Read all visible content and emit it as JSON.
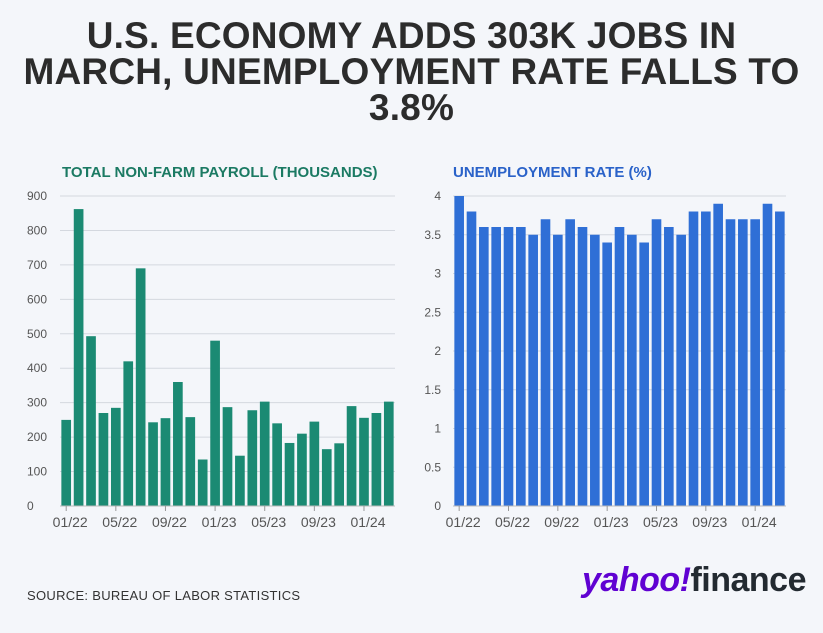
{
  "headline": {
    "line1": "U.S. ECONOMY ADDS 303K JOBS IN",
    "line2": "MARCH, UNEMPLOYMENT RATE FALLS TO",
    "line3": "3.8%"
  },
  "source": "SOURCE: BUREAU OF LABOR STATISTICS",
  "logo": {
    "yahoo": "yahoo!",
    "finance": "finance"
  },
  "colors": {
    "payroll": "#1b8a73",
    "unemployment": "#2f6fd6",
    "payroll_title": "#1b7a63",
    "unemployment_title": "#2a62c9"
  },
  "chart_data": [
    {
      "type": "bar",
      "title": "TOTAL NON-FARM PAYROLL (THOUSANDS)",
      "xlabel": "",
      "ylabel": "",
      "ylim": [
        0,
        900
      ],
      "yticks": [
        "0",
        "100",
        "200",
        "300",
        "400",
        "500",
        "600",
        "700",
        "800",
        "900"
      ],
      "xticks": [
        "01/22",
        "05/22",
        "09/22",
        "01/23",
        "05/23",
        "09/23",
        "01/24"
      ],
      "x": [
        "01/22",
        "02/22",
        "03/22",
        "04/22",
        "05/22",
        "06/22",
        "07/22",
        "08/22",
        "09/22",
        "10/22",
        "11/22",
        "12/22",
        "01/23",
        "02/23",
        "03/23",
        "04/23",
        "05/23",
        "06/23",
        "07/23",
        "08/23",
        "09/23",
        "10/23",
        "11/23",
        "12/23",
        "01/24",
        "02/24",
        "03/24"
      ],
      "values": [
        250,
        862,
        493,
        270,
        285,
        420,
        690,
        243,
        255,
        360,
        258,
        135,
        480,
        287,
        146,
        278,
        303,
        240,
        183,
        210,
        245,
        165,
        182,
        290,
        256,
        270,
        303
      ],
      "grid": true
    },
    {
      "type": "bar",
      "title": "UNEMPLOYMENT RATE (%)",
      "xlabel": "",
      "ylabel": "",
      "ylim": [
        0,
        4
      ],
      "yticks": [
        "0",
        "0.5",
        "1",
        "1.5",
        "2",
        "2.5",
        "3",
        "3.5",
        "4"
      ],
      "xticks": [
        "01/22",
        "05/22",
        "09/22",
        "01/23",
        "05/23",
        "09/23",
        "01/24"
      ],
      "x": [
        "01/22",
        "02/22",
        "03/22",
        "04/22",
        "05/22",
        "06/22",
        "07/22",
        "08/22",
        "09/22",
        "10/22",
        "11/22",
        "12/22",
        "01/23",
        "02/23",
        "03/23",
        "04/23",
        "05/23",
        "06/23",
        "07/23",
        "08/23",
        "09/23",
        "10/23",
        "11/23",
        "12/23",
        "01/24",
        "02/24",
        "03/24"
      ],
      "values": [
        4.0,
        3.8,
        3.6,
        3.6,
        3.6,
        3.6,
        3.5,
        3.7,
        3.5,
        3.7,
        3.6,
        3.5,
        3.4,
        3.6,
        3.5,
        3.4,
        3.7,
        3.6,
        3.5,
        3.8,
        3.8,
        3.9,
        3.7,
        3.7,
        3.7,
        3.9,
        3.8
      ],
      "grid": true
    }
  ]
}
